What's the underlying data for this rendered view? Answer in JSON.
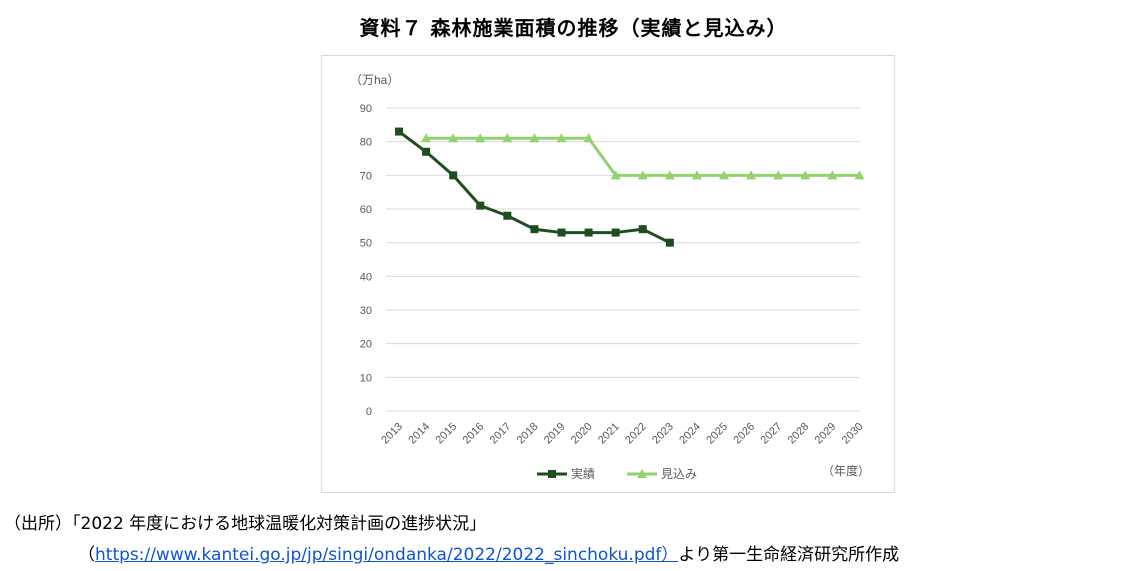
{
  "title": "資料７ 森林施業面積の推移（実績と見込み）",
  "source": {
    "line1": "（出所）「2022 年度における地球温暖化対策計画の進捗状況」",
    "link_open": "（",
    "link_text": "https://www.kantei.go.jp/jp/singi/ondanka/2022/2022_sinchoku.pdf）",
    "link_suffix": "より第一生命経済研究所作成"
  },
  "chart_data": {
    "type": "line",
    "ylabel": "（万ha）",
    "xlabel": "（年度）",
    "ylim": [
      0,
      90
    ],
    "yticks": [
      0,
      10,
      20,
      30,
      40,
      50,
      60,
      70,
      80,
      90
    ],
    "grid": true,
    "legend_position": "bottom",
    "categories": [
      "2013",
      "2014",
      "2015",
      "2016",
      "2017",
      "2018",
      "2019",
      "2020",
      "2021",
      "2022",
      "2023",
      "2024",
      "2025",
      "2026",
      "2027",
      "2028",
      "2029",
      "2030"
    ],
    "series": [
      {
        "name": "実績",
        "color": "#1e4d1e",
        "marker": "square",
        "values": [
          83,
          77,
          70,
          61,
          58,
          54,
          53,
          53,
          53,
          54,
          50,
          null,
          null,
          null,
          null,
          null,
          null,
          null
        ]
      },
      {
        "name": "見込み",
        "color": "#92d36e",
        "marker": "triangle",
        "values": [
          null,
          81,
          81,
          81,
          81,
          81,
          81,
          81,
          70,
          70,
          70,
          70,
          70,
          70,
          70,
          70,
          70,
          70
        ]
      }
    ]
  }
}
